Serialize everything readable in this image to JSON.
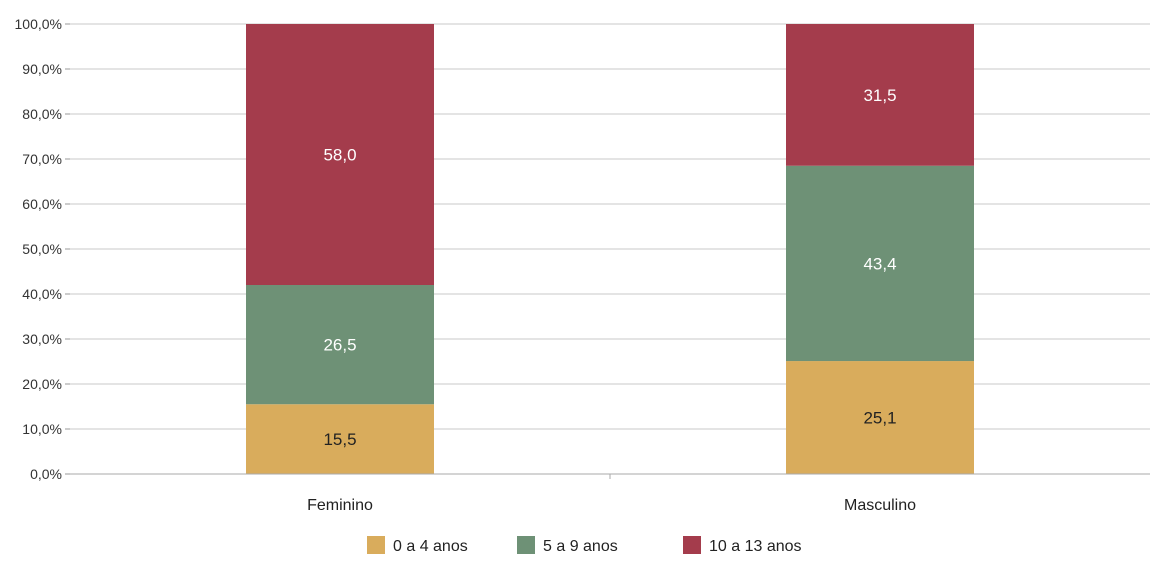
{
  "chart_data": {
    "type": "bar",
    "stacked": true,
    "categories": [
      "Feminino",
      "Masculino"
    ],
    "series": [
      {
        "name": "0 a 4 anos",
        "values": [
          15.5,
          25.1
        ],
        "labels": [
          "15,5",
          "25,1"
        ],
        "color": "#D9AC5C",
        "label_color": "#222222"
      },
      {
        "name": "5 a 9 anos",
        "values": [
          26.5,
          43.4
        ],
        "labels": [
          "26,5",
          "43,4"
        ],
        "color": "#6E9176",
        "label_color": "#ffffff"
      },
      {
        "name": "10 a 13 anos",
        "values": [
          58.0,
          31.5
        ],
        "labels": [
          "58,0",
          "31,5"
        ],
        "color": "#A43C4C",
        "label_color": "#ffffff"
      }
    ],
    "ylim": [
      0,
      100
    ],
    "yticks": [
      0,
      10,
      20,
      30,
      40,
      50,
      60,
      70,
      80,
      90,
      100
    ],
    "ytick_labels": [
      "0,0%",
      "10,0%",
      "20,0%",
      "30,0%",
      "40,0%",
      "50,0%",
      "60,0%",
      "70,0%",
      "80,0%",
      "90,0%",
      "100,0%"
    ],
    "grid": true,
    "legend_position": "bottom",
    "title": "",
    "xlabel": "",
    "ylabel": ""
  }
}
